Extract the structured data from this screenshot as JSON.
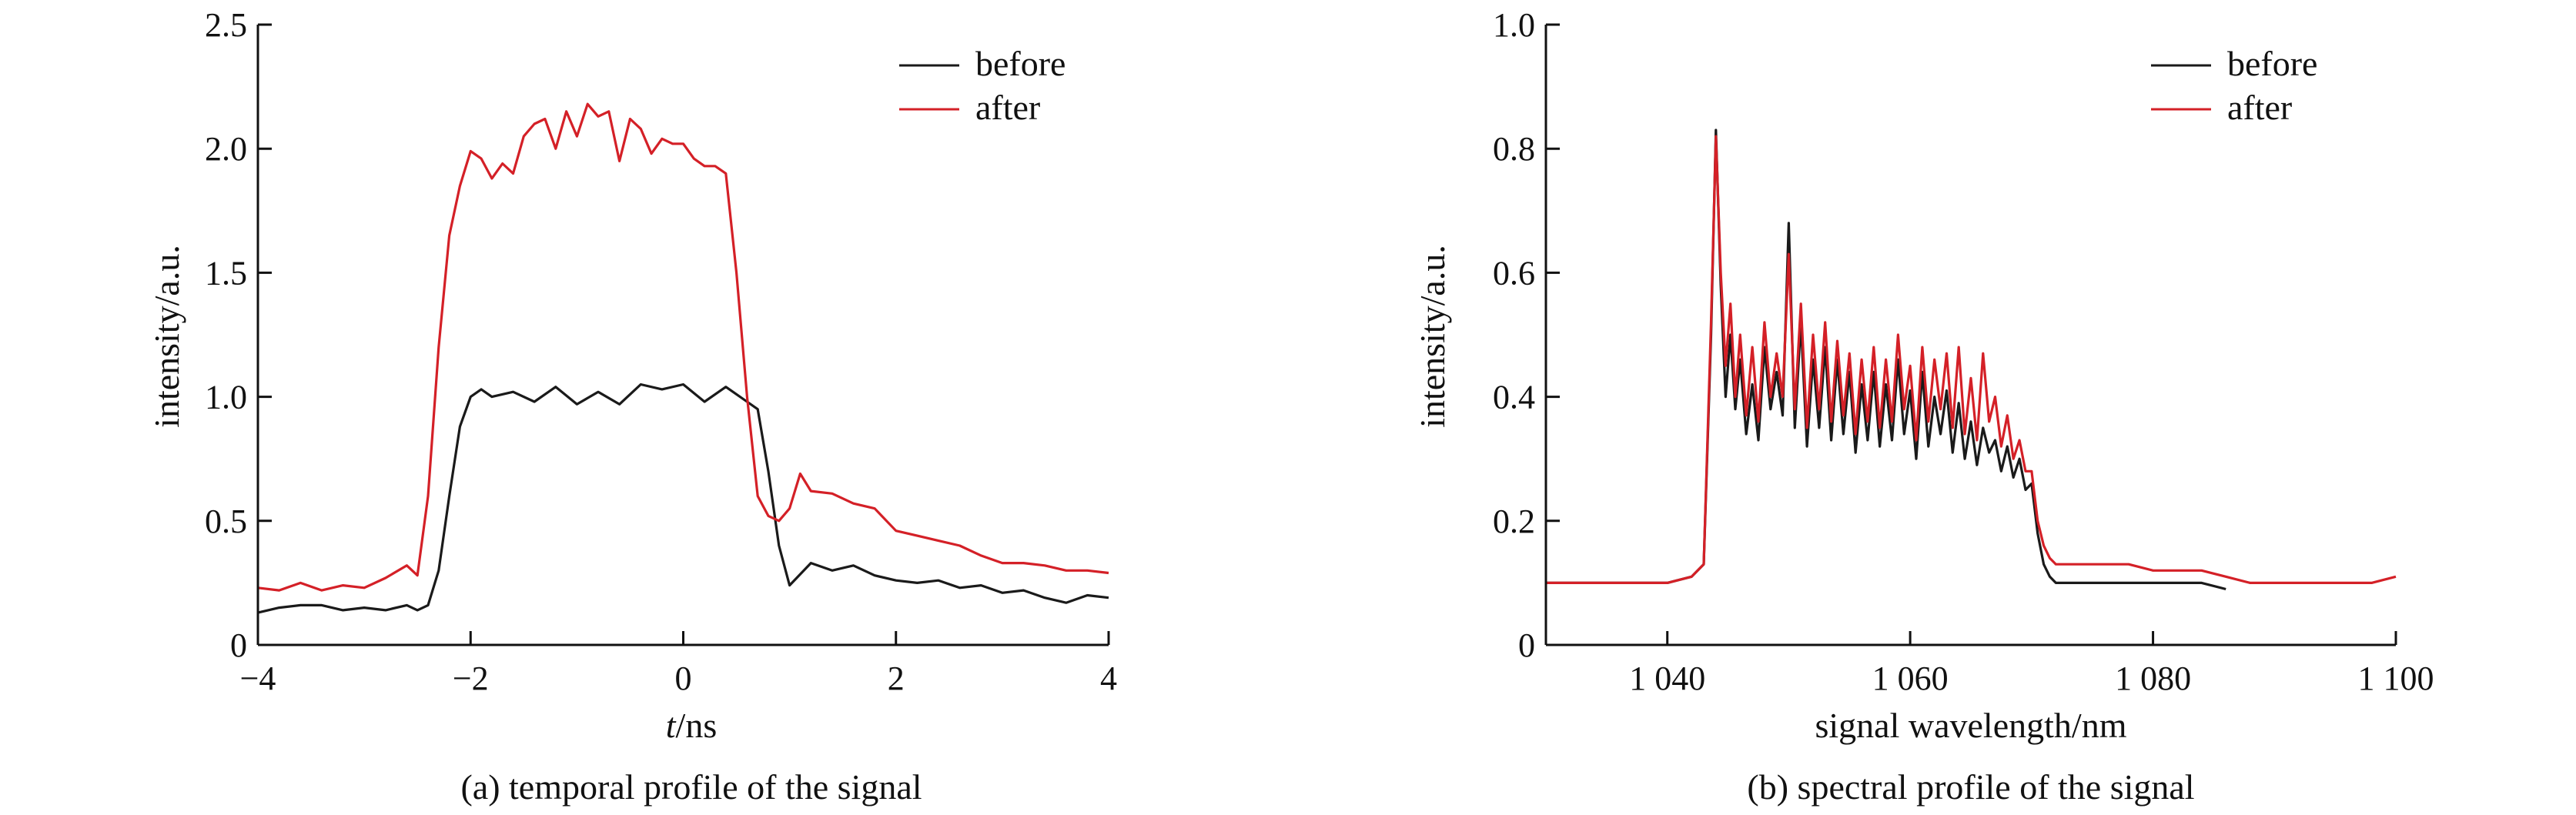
{
  "colors": {
    "before": "#1a1a1a",
    "after": "#d42027"
  },
  "chart_data": [
    {
      "type": "line",
      "caption": "(a) temporal profile of the signal",
      "xlabel_italic": "t",
      "xlabel_unit": "/ns",
      "ylabel": "intensity/a.u.",
      "xlim": [
        -4,
        4
      ],
      "ylim": [
        0,
        2.5
      ],
      "xticks": [
        -4,
        -2,
        0,
        2,
        4
      ],
      "xtick_labels": [
        "−4",
        "−2",
        "0",
        "2",
        "4"
      ],
      "yticks": [
        0,
        0.5,
        1.0,
        1.5,
        2.0,
        2.5
      ],
      "ytick_labels": [
        "0",
        "0.5",
        "1.0",
        "1.5",
        "2.0",
        "2.5"
      ],
      "legend": "top-right",
      "series": [
        {
          "name": "before",
          "x": [
            -4.0,
            -3.8,
            -3.6,
            -3.4,
            -3.2,
            -3.0,
            -2.8,
            -2.6,
            -2.5,
            -2.4,
            -2.3,
            -2.2,
            -2.1,
            -2.0,
            -1.9,
            -1.8,
            -1.6,
            -1.4,
            -1.2,
            -1.0,
            -0.8,
            -0.6,
            -0.4,
            -0.2,
            0.0,
            0.2,
            0.4,
            0.6,
            0.7,
            0.8,
            0.9,
            1.0,
            1.2,
            1.4,
            1.6,
            1.8,
            2.0,
            2.2,
            2.4,
            2.6,
            2.8,
            3.0,
            3.2,
            3.4,
            3.6,
            3.8,
            4.0
          ],
          "y": [
            0.13,
            0.15,
            0.16,
            0.16,
            0.14,
            0.15,
            0.14,
            0.16,
            0.14,
            0.16,
            0.3,
            0.6,
            0.88,
            1.0,
            1.03,
            1.0,
            1.02,
            0.98,
            1.04,
            0.97,
            1.02,
            0.97,
            1.05,
            1.03,
            1.05,
            0.98,
            1.04,
            0.98,
            0.95,
            0.7,
            0.4,
            0.24,
            0.33,
            0.3,
            0.32,
            0.28,
            0.26,
            0.25,
            0.26,
            0.23,
            0.24,
            0.21,
            0.22,
            0.19,
            0.17,
            0.2,
            0.19
          ]
        },
        {
          "name": "after",
          "x": [
            -4.0,
            -3.8,
            -3.6,
            -3.4,
            -3.2,
            -3.0,
            -2.8,
            -2.6,
            -2.5,
            -2.4,
            -2.3,
            -2.2,
            -2.1,
            -2.0,
            -1.9,
            -1.8,
            -1.7,
            -1.6,
            -1.5,
            -1.4,
            -1.3,
            -1.2,
            -1.1,
            -1.0,
            -0.9,
            -0.8,
            -0.7,
            -0.6,
            -0.5,
            -0.4,
            -0.3,
            -0.2,
            -0.1,
            0.0,
            0.1,
            0.2,
            0.3,
            0.4,
            0.5,
            0.6,
            0.7,
            0.8,
            0.9,
            1.0,
            1.1,
            1.2,
            1.4,
            1.6,
            1.8,
            2.0,
            2.2,
            2.4,
            2.6,
            2.8,
            3.0,
            3.2,
            3.4,
            3.6,
            3.8,
            4.0
          ],
          "y": [
            0.23,
            0.22,
            0.25,
            0.22,
            0.24,
            0.23,
            0.27,
            0.32,
            0.28,
            0.6,
            1.2,
            1.65,
            1.85,
            1.99,
            1.96,
            1.88,
            1.94,
            1.9,
            2.05,
            2.1,
            2.12,
            2.0,
            2.15,
            2.05,
            2.18,
            2.13,
            2.15,
            1.95,
            2.12,
            2.08,
            1.98,
            2.04,
            2.02,
            2.02,
            1.96,
            1.93,
            1.93,
            1.9,
            1.5,
            1.0,
            0.6,
            0.52,
            0.5,
            0.55,
            0.69,
            0.62,
            0.61,
            0.57,
            0.55,
            0.46,
            0.44,
            0.42,
            0.4,
            0.36,
            0.33,
            0.33,
            0.32,
            0.3,
            0.3,
            0.29
          ]
        }
      ]
    },
    {
      "type": "line",
      "caption": "(b) spectral profile of the signal",
      "xlabel": "signal wavelength/nm",
      "ylabel": "intensity/a.u.",
      "xlim": [
        1030,
        1100
      ],
      "ylim": [
        0,
        1.0
      ],
      "xticks": [
        1040,
        1060,
        1080,
        1100
      ],
      "xtick_labels": [
        "1 040",
        "1 060",
        "1 080",
        "1 100"
      ],
      "yticks": [
        0,
        0.2,
        0.4,
        0.6,
        0.8,
        1.0
      ],
      "ytick_labels": [
        "0",
        "0.2",
        "0.4",
        "0.6",
        "0.8",
        "1.0"
      ],
      "legend": "top-right",
      "series": [
        {
          "name": "before",
          "x": [
            1030,
            1032,
            1034,
            1036,
            1038,
            1040,
            1042,
            1043,
            1043.6,
            1044.0,
            1044.4,
            1044.8,
            1045.2,
            1045.6,
            1046.0,
            1046.5,
            1047.0,
            1047.5,
            1048.0,
            1048.5,
            1049.0,
            1049.5,
            1050.0,
            1050.5,
            1051.0,
            1051.5,
            1052.0,
            1052.5,
            1053.0,
            1053.5,
            1054.0,
            1054.5,
            1055.0,
            1055.5,
            1056.0,
            1056.5,
            1057.0,
            1057.5,
            1058.0,
            1058.5,
            1059.0,
            1059.5,
            1060.0,
            1060.5,
            1061.0,
            1061.5,
            1062.0,
            1062.5,
            1063.0,
            1063.5,
            1064.0,
            1064.5,
            1065.0,
            1065.5,
            1066.0,
            1066.5,
            1067.0,
            1067.5,
            1068.0,
            1068.5,
            1069.0,
            1069.5,
            1070.0,
            1070.5,
            1071.0,
            1071.5,
            1072.0,
            1074,
            1076,
            1078,
            1080,
            1082,
            1084,
            1086
          ],
          "y": [
            0.1,
            0.1,
            0.1,
            0.1,
            0.1,
            0.1,
            0.11,
            0.13,
            0.5,
            0.83,
            0.58,
            0.4,
            0.5,
            0.38,
            0.46,
            0.34,
            0.42,
            0.33,
            0.48,
            0.38,
            0.44,
            0.37,
            0.68,
            0.35,
            0.52,
            0.32,
            0.46,
            0.35,
            0.48,
            0.33,
            0.46,
            0.34,
            0.44,
            0.31,
            0.42,
            0.33,
            0.44,
            0.32,
            0.42,
            0.33,
            0.46,
            0.34,
            0.41,
            0.3,
            0.44,
            0.32,
            0.4,
            0.34,
            0.41,
            0.31,
            0.39,
            0.3,
            0.36,
            0.29,
            0.35,
            0.31,
            0.33,
            0.28,
            0.32,
            0.27,
            0.3,
            0.25,
            0.26,
            0.18,
            0.13,
            0.11,
            0.1,
            0.1,
            0.1,
            0.1,
            0.1,
            0.1,
            0.1,
            0.09
          ]
        },
        {
          "name": "after",
          "x": [
            1030,
            1032,
            1034,
            1036,
            1038,
            1040,
            1042,
            1043,
            1043.6,
            1044.0,
            1044.4,
            1044.8,
            1045.2,
            1045.6,
            1046.0,
            1046.5,
            1047.0,
            1047.5,
            1048.0,
            1048.5,
            1049.0,
            1049.5,
            1050.0,
            1050.5,
            1051.0,
            1051.5,
            1052.0,
            1052.5,
            1053.0,
            1053.5,
            1054.0,
            1054.5,
            1055.0,
            1055.5,
            1056.0,
            1056.5,
            1057.0,
            1057.5,
            1058.0,
            1058.5,
            1059.0,
            1059.5,
            1060.0,
            1060.5,
            1061.0,
            1061.5,
            1062.0,
            1062.5,
            1063.0,
            1063.5,
            1064.0,
            1064.5,
            1065.0,
            1065.5,
            1066.0,
            1066.5,
            1067.0,
            1067.5,
            1068.0,
            1068.5,
            1069.0,
            1069.5,
            1070.0,
            1070.5,
            1071.0,
            1071.5,
            1072.0,
            1074,
            1076,
            1078,
            1080,
            1082,
            1084,
            1086,
            1088,
            1090,
            1092,
            1094,
            1096,
            1098,
            1100
          ],
          "y": [
            0.1,
            0.1,
            0.1,
            0.1,
            0.1,
            0.1,
            0.11,
            0.13,
            0.52,
            0.82,
            0.6,
            0.45,
            0.55,
            0.4,
            0.5,
            0.37,
            0.48,
            0.36,
            0.52,
            0.4,
            0.47,
            0.4,
            0.63,
            0.38,
            0.55,
            0.35,
            0.5,
            0.38,
            0.52,
            0.36,
            0.49,
            0.37,
            0.47,
            0.34,
            0.46,
            0.36,
            0.48,
            0.35,
            0.46,
            0.36,
            0.5,
            0.38,
            0.45,
            0.33,
            0.48,
            0.36,
            0.46,
            0.38,
            0.47,
            0.35,
            0.48,
            0.34,
            0.43,
            0.33,
            0.47,
            0.36,
            0.4,
            0.32,
            0.37,
            0.3,
            0.33,
            0.28,
            0.28,
            0.2,
            0.16,
            0.14,
            0.13,
            0.13,
            0.13,
            0.13,
            0.12,
            0.12,
            0.12,
            0.11,
            0.1,
            0.1,
            0.1,
            0.1,
            0.1,
            0.1,
            0.11
          ]
        }
      ]
    }
  ]
}
